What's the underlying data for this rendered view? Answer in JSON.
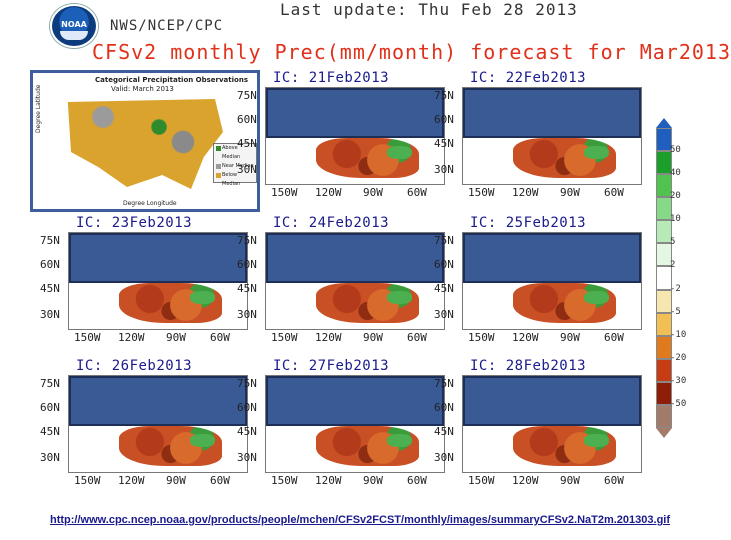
{
  "header": {
    "logo_text": "NOAA",
    "last_update": "Last update: Thu Feb 28 2013",
    "agency": "NWS/NCEP/CPC",
    "title": "CFSv2 monthly Prec(mm/month) forecast for Mar2013"
  },
  "inset": {
    "title": "Categorical Precipitation Observations",
    "subtitle": "Valid: March 2013",
    "x_axis": "Degree Longitude",
    "y_axis": "Degree Latitude",
    "legend": [
      "Above Median",
      "Near Median",
      "Below Median"
    ]
  },
  "panels": [
    {
      "label": "IC: 21Feb2013"
    },
    {
      "label": "IC: 22Feb2013"
    },
    {
      "label": "IC: 23Feb2013"
    },
    {
      "label": "IC: 24Feb2013"
    },
    {
      "label": "IC: 25Feb2013"
    },
    {
      "label": "IC: 26Feb2013"
    },
    {
      "label": "IC: 27Feb2013"
    },
    {
      "label": "IC: 28Feb2013"
    }
  ],
  "axes": {
    "lat_labels": [
      "75N",
      "60N",
      "45N",
      "30N"
    ],
    "lon_labels": [
      "150W",
      "120W",
      "90W",
      "60W"
    ]
  },
  "colorbar": {
    "labels": [
      "50",
      "40",
      "20",
      "10",
      "5",
      "2",
      "-2",
      "-5",
      "-10",
      "-20",
      "-30",
      "-50"
    ],
    "colors": [
      "#1f5fbf",
      "#1aa02a",
      "#4fc24f",
      "#86d986",
      "#b6eab6",
      "#e4f7e4",
      "#ffffff",
      "#f7e6b0",
      "#f2bf55",
      "#e07a1f",
      "#c63c13",
      "#8e1d0a",
      "#a37b6a"
    ]
  },
  "source_url": "http://www.cpc.ncep.noaa.gov/products/people/mchen/CFSv2FCST/monthly/images/summaryCFSv2.NaT2m.201303.gif"
}
